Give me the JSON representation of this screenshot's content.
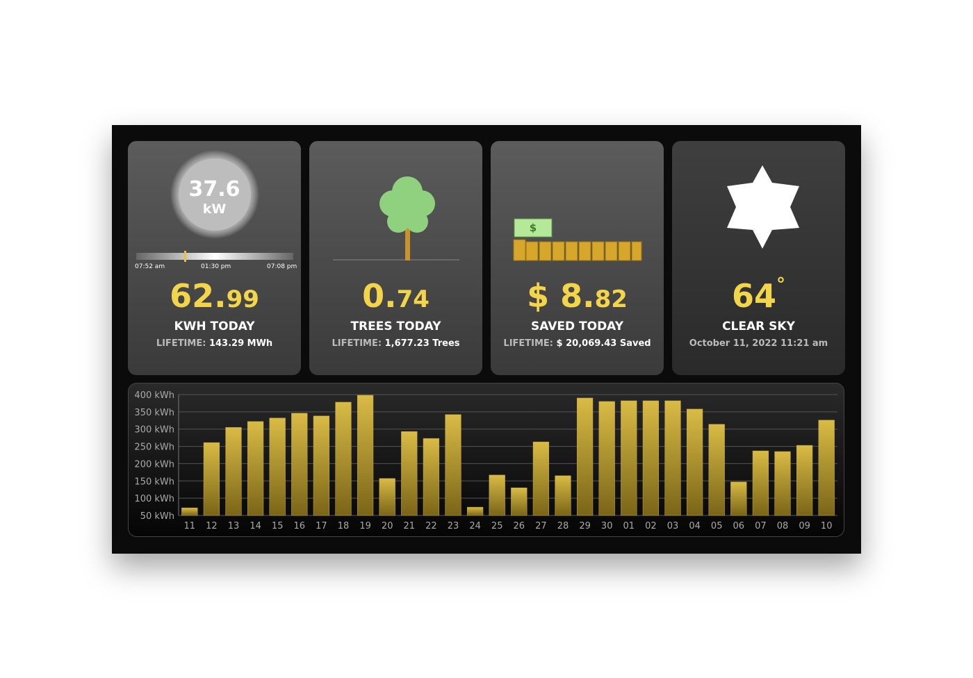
{
  "cards": [
    {
      "gauge_value": "37.6",
      "gauge_unit": "kW",
      "times": [
        "07:52 am",
        "01:30 pm",
        "07:08 pm"
      ],
      "big_main": "62.",
      "big_small": "99",
      "label": "KWH TODAY",
      "lifetime_label": "LIFETIME:",
      "lifetime_value": "143.29 MWh"
    },
    {
      "big_main": "0.",
      "big_small": "74",
      "label": "TREES TODAY",
      "lifetime_label": "LIFETIME:",
      "lifetime_value": "1,677.23 Trees"
    },
    {
      "money_symbol": "$",
      "big_main": "$ 8.",
      "big_small": "82",
      "label": "SAVED TODAY",
      "lifetime_label": "LIFETIME:",
      "lifetime_value": "$ 20,069.43 Saved"
    },
    {
      "big_main": "64",
      "degree": "°",
      "label": "CLEAR SKY",
      "datetime": "October 11, 2022 11:21 am"
    }
  ],
  "chart_data": {
    "type": "bar",
    "categories": [
      "11",
      "12",
      "13",
      "14",
      "15",
      "16",
      "17",
      "18",
      "19",
      "20",
      "21",
      "22",
      "23",
      "24",
      "25",
      "26",
      "27",
      "28",
      "29",
      "30",
      "01",
      "02",
      "03",
      "04",
      "05",
      "06",
      "07",
      "08",
      "09",
      "10"
    ],
    "values": [
      72,
      261,
      305,
      322,
      332,
      346,
      338,
      378,
      398,
      157,
      293,
      273,
      342,
      74,
      167,
      130,
      263,
      165,
      390,
      380,
      382,
      382,
      382,
      358,
      314,
      147,
      237,
      235,
      253,
      326
    ],
    "ylim": [
      50,
      400
    ],
    "yticks": [
      {
        "value": 50,
        "label": "50 kWh"
      },
      {
        "value": 100,
        "label": "100 kWh"
      },
      {
        "value": 150,
        "label": "150 kWh"
      },
      {
        "value": 200,
        "label": "200 kWh"
      },
      {
        "value": 250,
        "label": "250 kWh"
      },
      {
        "value": 300,
        "label": "300 kWh"
      },
      {
        "value": 350,
        "label": "350 kWh"
      },
      {
        "value": 400,
        "label": "400 kWh"
      }
    ],
    "grid": true,
    "color": "#c9a93a"
  }
}
